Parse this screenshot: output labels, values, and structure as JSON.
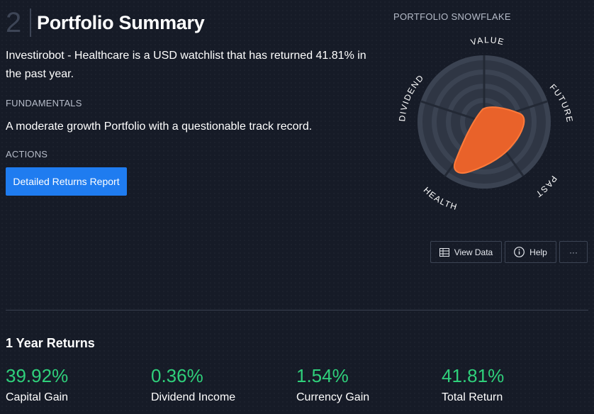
{
  "section": {
    "number": "2",
    "title": "Portfolio Summary"
  },
  "summary": {
    "description": "Investirobot - Healthcare is a USD watchlist that has returned 41.81% in the past year."
  },
  "fundamentals": {
    "label": "FUNDAMENTALS",
    "text": "A moderate growth Portfolio with a questionable track record."
  },
  "actions": {
    "label": "ACTIONS",
    "button_label": "Detailed Returns Report"
  },
  "snowflake": {
    "title": "PORTFOLIO SNOWFLAKE",
    "axes": [
      "VALUE",
      "FUTURE",
      "PAST",
      "HEALTH",
      "DIVIDEND"
    ],
    "fill_color": "#e9622a"
  },
  "toolbar": {
    "view_data": "View Data",
    "help": "Help",
    "more": "···"
  },
  "returns": {
    "title": "1 Year Returns",
    "metrics": [
      {
        "value": "39.92%",
        "label": "Capital Gain"
      },
      {
        "value": "0.36%",
        "label": "Dividend Income"
      },
      {
        "value": "1.54%",
        "label": "Currency Gain"
      },
      {
        "value": "41.81%",
        "label": "Total Return"
      }
    ],
    "value_color": "#2fd07b"
  }
}
